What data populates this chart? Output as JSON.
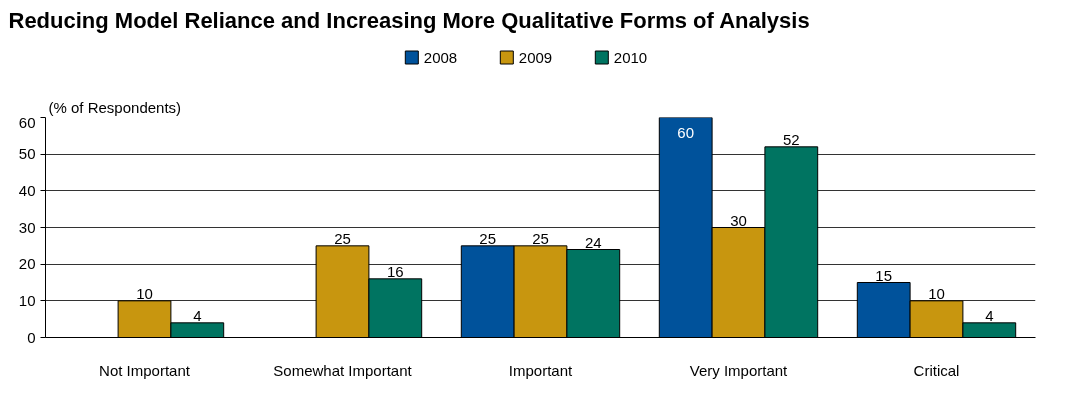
{
  "chart_data": {
    "type": "bar",
    "title": "Reducing Model Reliance and Increasing More Qualitative Forms of Analysis",
    "ylabel": "(% of Respondents)",
    "categories": [
      "Not Important",
      "Somewhat Important",
      "Important",
      "Very Important",
      "Critical"
    ],
    "series": [
      {
        "name": "2008",
        "color": "#00529b",
        "values": [
          null,
          null,
          25,
          60,
          15
        ]
      },
      {
        "name": "2009",
        "color": "#c8960f",
        "values": [
          10,
          25,
          25,
          30,
          10
        ]
      },
      {
        "name": "2010",
        "color": "#007461",
        "values": [
          4,
          16,
          24,
          52,
          4
        ]
      }
    ],
    "ylim": [
      0,
      60
    ],
    "yticks": [
      0,
      10,
      20,
      30,
      40,
      50,
      60
    ],
    "grid": "y",
    "legend": "top",
    "data_labels": true
  }
}
